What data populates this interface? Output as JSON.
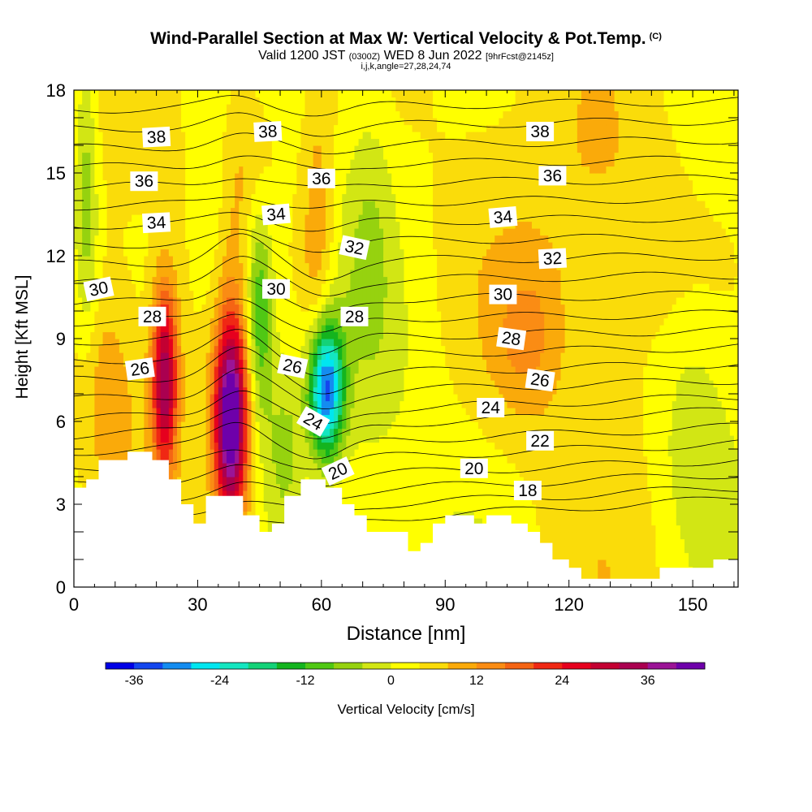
{
  "title": "Wind-Parallel Section at Max W: Vertical Velocity & Pot.Temp.",
  "title_mark": "(C)",
  "subtitle_valid": "Valid 1200 JST",
  "subtitle_utc": "(0300Z)",
  "subtitle_date": "WED 8 Jun 2022",
  "subtitle_fcst": "[9hrFcst@2145z]",
  "params": "i,j,k,angle=27,28,24,74",
  "colors": {
    "scale": [
      "#0000e6",
      "#1446ee",
      "#148cf0",
      "#00e6f0",
      "#14e6c0",
      "#14d278",
      "#14b41e",
      "#50c814",
      "#96d20f",
      "#d2e614",
      "#ffff00",
      "#fadc0a",
      "#faaa0a",
      "#fa8c14",
      "#f56414",
      "#f02814",
      "#e6001e",
      "#c30032",
      "#aa0050",
      "#9b1496",
      "#6e00aa"
    ],
    "terrain": "#ffffff",
    "contour": "#000000"
  },
  "chart_data": {
    "type": "heatmap",
    "xlabel": "Distance [nm]",
    "ylabel": "Height [Kft MSL]",
    "xlim": [
      0,
      161
    ],
    "ylim": [
      0,
      18
    ],
    "xticks": [
      "0",
      "30",
      "60",
      "90",
      "120",
      "150"
    ],
    "yticks": [
      "0",
      "3",
      "6",
      "9",
      "12",
      "15",
      "18"
    ],
    "colorbar": {
      "label": "Vertical Velocity [cm/s]",
      "ticks": [
        "-36",
        "-24",
        "-12",
        "0",
        "12",
        "24",
        "36"
      ],
      "range": [
        -40,
        44
      ],
      "step": 4
    },
    "terrain": [
      [
        0,
        3.6
      ],
      [
        3,
        3.6
      ],
      [
        3,
        3.9
      ],
      [
        6,
        3.9
      ],
      [
        6,
        4.6
      ],
      [
        13,
        4.6
      ],
      [
        13,
        4.9
      ],
      [
        19,
        4.9
      ],
      [
        19,
        4.6
      ],
      [
        23,
        4.6
      ],
      [
        23,
        3.9
      ],
      [
        26,
        3.9
      ],
      [
        26,
        3.0
      ],
      [
        29,
        3.0
      ],
      [
        29,
        2.3
      ],
      [
        32,
        2.3
      ],
      [
        32,
        3.3
      ],
      [
        41,
        3.3
      ],
      [
        41,
        2.6
      ],
      [
        45,
        2.6
      ],
      [
        45,
        2.0
      ],
      [
        48,
        2.0
      ],
      [
        48,
        2.3
      ],
      [
        51,
        2.3
      ],
      [
        51,
        3.3
      ],
      [
        55,
        3.3
      ],
      [
        55,
        3.9
      ],
      [
        61,
        3.9
      ],
      [
        61,
        3.6
      ],
      [
        65,
        3.6
      ],
      [
        65,
        3.0
      ],
      [
        68,
        3.0
      ],
      [
        68,
        2.6
      ],
      [
        71,
        2.6
      ],
      [
        71,
        2.0
      ],
      [
        81,
        2.0
      ],
      [
        81,
        1.3
      ],
      [
        84,
        1.3
      ],
      [
        84,
        1.6
      ],
      [
        87,
        1.6
      ],
      [
        87,
        2.3
      ],
      [
        90,
        2.3
      ],
      [
        90,
        2.6
      ],
      [
        97,
        2.6
      ],
      [
        97,
        2.3
      ],
      [
        100,
        2.3
      ],
      [
        100,
        2.6
      ],
      [
        106,
        2.6
      ],
      [
        106,
        2.3
      ],
      [
        110,
        2.3
      ],
      [
        110,
        2.0
      ],
      [
        113,
        2.0
      ],
      [
        113,
        1.6
      ],
      [
        116,
        1.6
      ],
      [
        116,
        1.0
      ],
      [
        120,
        1.0
      ],
      [
        120,
        0.7
      ],
      [
        123,
        0.7
      ],
      [
        123,
        0.3
      ],
      [
        142,
        0.3
      ],
      [
        142,
        0.7
      ],
      [
        155,
        0.7
      ],
      [
        155,
        1.0
      ],
      [
        161,
        1.0
      ]
    ],
    "updrafts": [
      {
        "x": 22,
        "y": 7.5,
        "sx": 2.2,
        "sy": 2.4,
        "amp": 32
      },
      {
        "x": 38,
        "y": 6.0,
        "sx": 2.8,
        "sy": 2.6,
        "amp": 44
      },
      {
        "x": 59,
        "y": 12.0,
        "sx": 3.0,
        "sy": 4.5,
        "amp": 10
      },
      {
        "x": 42,
        "y": 16.0,
        "sx": 6.0,
        "sy": 3.0,
        "amp": 7
      },
      {
        "x": 132,
        "y": 14.0,
        "sx": 14.0,
        "sy": 5.0,
        "amp": 6
      },
      {
        "x": 110,
        "y": 9.0,
        "sx": 6.0,
        "sy": 2.0,
        "amp": 7
      },
      {
        "x": 8,
        "y": 7.0,
        "sx": 6.0,
        "sy": 3.0,
        "amp": 9
      }
    ],
    "downdrafts": [
      {
        "x": 61,
        "y": 7.2,
        "sx": 3.0,
        "sy": 1.8,
        "amp": -38
      },
      {
        "x": 45,
        "y": 10.0,
        "sx": 2.4,
        "sy": 2.8,
        "amp": -18
      },
      {
        "x": 51,
        "y": 5.0,
        "sx": 3.5,
        "sy": 2.5,
        "amp": -9
      },
      {
        "x": 3,
        "y": 14.0,
        "sx": 2.0,
        "sy": 4.0,
        "amp": -10
      },
      {
        "x": 33,
        "y": 14.0,
        "sx": 3.0,
        "sy": 4.0,
        "amp": -5
      },
      {
        "x": 72,
        "y": 13.0,
        "sx": 4.0,
        "sy": 4.0,
        "amp": -5
      },
      {
        "x": 150,
        "y": 6.0,
        "sx": 6.0,
        "sy": 3.0,
        "amp": -6
      }
    ],
    "theta_lines": [
      {
        "value": 18,
        "y0": 1.9,
        "y1": 3.2
      },
      {
        "value": 19,
        "y0": 2.5,
        "y1": 3.6
      },
      {
        "value": 20,
        "y0": 3.1,
        "y1": 4.1
      },
      {
        "value": 21,
        "y0": 3.7,
        "y1": 4.6
      },
      {
        "value": 22,
        "y0": 4.3,
        "y1": 5.2
      },
      {
        "value": 23,
        "y0": 4.9,
        "y1": 5.8
      },
      {
        "value": 24,
        "y0": 5.5,
        "y1": 6.4
      },
      {
        "value": 25,
        "y0": 6.1,
        "y1": 6.9
      },
      {
        "value": 26,
        "y0": 6.8,
        "y1": 7.5
      },
      {
        "value": 27,
        "y0": 7.5,
        "y1": 8.1
      },
      {
        "value": 28,
        "y0": 8.2,
        "y1": 8.7
      },
      {
        "value": 29,
        "y0": 8.9,
        "y1": 9.3
      },
      {
        "value": 30,
        "y0": 9.6,
        "y1": 9.9
      },
      {
        "value": 31,
        "y0": 10.3,
        "y1": 10.6
      },
      {
        "value": 32,
        "y0": 11.0,
        "y1": 11.3
      },
      {
        "value": 33,
        "y0": 11.7,
        "y1": 12.0
      },
      {
        "value": 34,
        "y0": 12.4,
        "y1": 12.7
      },
      {
        "value": 35,
        "y0": 13.1,
        "y1": 13.4
      },
      {
        "value": 36,
        "y0": 13.8,
        "y1": 14.1
      },
      {
        "value": 37,
        "y0": 14.5,
        "y1": 14.8
      },
      {
        "value": 38,
        "y0": 15.2,
        "y1": 15.5
      },
      {
        "value": 39,
        "y0": 15.9,
        "y1": 16.2
      },
      {
        "value": 40,
        "y0": 16.6,
        "y1": 16.9
      },
      {
        "value": 41,
        "y0": 17.3,
        "y1": 17.6
      }
    ],
    "theta_labels": [
      {
        "text": "38",
        "x": 20,
        "y": 16.3,
        "angle": -3
      },
      {
        "text": "38",
        "x": 47,
        "y": 16.5,
        "angle": -3
      },
      {
        "text": "38",
        "x": 113,
        "y": 16.5,
        "angle": 0
      },
      {
        "text": "36",
        "x": 17,
        "y": 14.7,
        "angle": 0
      },
      {
        "text": "36",
        "x": 60,
        "y": 14.8,
        "angle": 0
      },
      {
        "text": "36",
        "x": 116,
        "y": 14.9,
        "angle": 0
      },
      {
        "text": "34",
        "x": 20,
        "y": 13.2,
        "angle": -3
      },
      {
        "text": "34",
        "x": 49,
        "y": 13.5,
        "angle": -5
      },
      {
        "text": "34",
        "x": 104,
        "y": 13.4,
        "angle": -5
      },
      {
        "text": "32",
        "x": 68,
        "y": 12.3,
        "angle": 12
      },
      {
        "text": "32",
        "x": 116,
        "y": 11.9,
        "angle": -3
      },
      {
        "text": "30",
        "x": 6,
        "y": 10.8,
        "angle": -12
      },
      {
        "text": "30",
        "x": 49,
        "y": 10.8,
        "angle": 0
      },
      {
        "text": "30",
        "x": 104,
        "y": 10.6,
        "angle": 0
      },
      {
        "text": "28",
        "x": 19,
        "y": 9.8,
        "angle": 0
      },
      {
        "text": "28",
        "x": 68,
        "y": 9.8,
        "angle": 0
      },
      {
        "text": "28",
        "x": 106,
        "y": 9.0,
        "angle": 8
      },
      {
        "text": "26",
        "x": 16,
        "y": 7.9,
        "angle": -8
      },
      {
        "text": "26",
        "x": 53,
        "y": 8.0,
        "angle": 12
      },
      {
        "text": "26",
        "x": 113,
        "y": 7.5,
        "angle": 8
      },
      {
        "text": "24",
        "x": 58,
        "y": 6.0,
        "angle": 30
      },
      {
        "text": "24",
        "x": 101,
        "y": 6.5,
        "angle": 0
      },
      {
        "text": "22",
        "x": 113,
        "y": 5.3,
        "angle": 0
      },
      {
        "text": "20",
        "x": 64,
        "y": 4.2,
        "angle": -25
      },
      {
        "text": "20",
        "x": 97,
        "y": 4.3,
        "angle": 0
      },
      {
        "text": "18",
        "x": 110,
        "y": 3.5,
        "angle": 0
      }
    ]
  }
}
